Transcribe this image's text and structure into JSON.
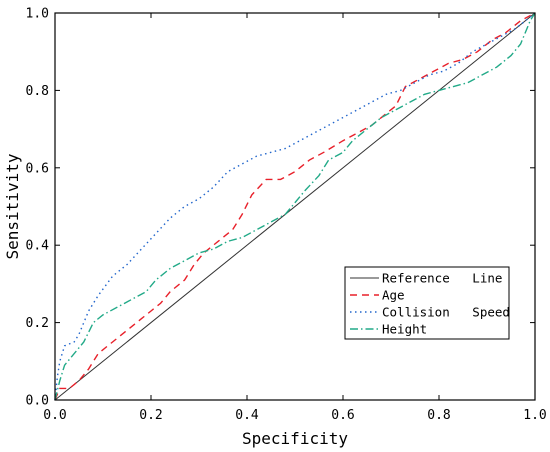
{
  "chart_data": {
    "type": "line",
    "xlabel": "Specificity",
    "ylabel": "Sensitivity",
    "xlim": [
      0.0,
      1.0
    ],
    "ylim": [
      0.0,
      1.0
    ],
    "xticks": [
      "0.0",
      "0.2",
      "0.4",
      "0.6",
      "0.8",
      "1.0"
    ],
    "yticks": [
      "0.0",
      "0.2",
      "0.4",
      "0.6",
      "0.8",
      "1.0"
    ],
    "grid": false,
    "legend_position": "bottom-right",
    "series": [
      {
        "name": "Reference   Line",
        "color": "#333333",
        "dash": "solid",
        "points": [
          [
            0,
            0
          ],
          [
            1,
            1
          ]
        ]
      },
      {
        "name": "Age",
        "color": "#e8202a",
        "dash": "dashed",
        "points": [
          [
            0,
            0
          ],
          [
            0.01,
            0.03
          ],
          [
            0.03,
            0.03
          ],
          [
            0.05,
            0.05
          ],
          [
            0.07,
            0.08
          ],
          [
            0.09,
            0.12
          ],
          [
            0.11,
            0.14
          ],
          [
            0.13,
            0.16
          ],
          [
            0.15,
            0.18
          ],
          [
            0.18,
            0.21
          ],
          [
            0.2,
            0.23
          ],
          [
            0.22,
            0.25
          ],
          [
            0.24,
            0.28
          ],
          [
            0.27,
            0.31
          ],
          [
            0.29,
            0.35
          ],
          [
            0.31,
            0.38
          ],
          [
            0.34,
            0.41
          ],
          [
            0.37,
            0.44
          ],
          [
            0.39,
            0.48
          ],
          [
            0.41,
            0.53
          ],
          [
            0.44,
            0.57
          ],
          [
            0.47,
            0.57
          ],
          [
            0.5,
            0.59
          ],
          [
            0.53,
            0.62
          ],
          [
            0.56,
            0.64
          ],
          [
            0.6,
            0.67
          ],
          [
            0.63,
            0.69
          ],
          [
            0.66,
            0.71
          ],
          [
            0.69,
            0.74
          ],
          [
            0.71,
            0.76
          ],
          [
            0.73,
            0.81
          ],
          [
            0.76,
            0.83
          ],
          [
            0.79,
            0.85
          ],
          [
            0.82,
            0.87
          ],
          [
            0.85,
            0.88
          ],
          [
            0.88,
            0.9
          ],
          [
            0.91,
            0.93
          ],
          [
            0.94,
            0.95
          ],
          [
            0.97,
            0.98
          ],
          [
            1,
            1
          ]
        ]
      },
      {
        "name": "Collision   Speed",
        "color": "#2266cc",
        "dash": "dotted",
        "points": [
          [
            0,
            0
          ],
          [
            0.005,
            0.06
          ],
          [
            0.01,
            0.1
          ],
          [
            0.02,
            0.14
          ],
          [
            0.04,
            0.15
          ],
          [
            0.05,
            0.17
          ],
          [
            0.07,
            0.23
          ],
          [
            0.09,
            0.27
          ],
          [
            0.12,
            0.32
          ],
          [
            0.15,
            0.35
          ],
          [
            0.18,
            0.39
          ],
          [
            0.21,
            0.43
          ],
          [
            0.24,
            0.47
          ],
          [
            0.27,
            0.5
          ],
          [
            0.3,
            0.52
          ],
          [
            0.33,
            0.55
          ],
          [
            0.36,
            0.59
          ],
          [
            0.39,
            0.61
          ],
          [
            0.42,
            0.63
          ],
          [
            0.45,
            0.64
          ],
          [
            0.48,
            0.65
          ],
          [
            0.51,
            0.67
          ],
          [
            0.54,
            0.69
          ],
          [
            0.57,
            0.71
          ],
          [
            0.6,
            0.73
          ],
          [
            0.63,
            0.75
          ],
          [
            0.66,
            0.77
          ],
          [
            0.69,
            0.79
          ],
          [
            0.72,
            0.8
          ],
          [
            0.75,
            0.82
          ],
          [
            0.78,
            0.84
          ],
          [
            0.81,
            0.85
          ],
          [
            0.84,
            0.87
          ],
          [
            0.87,
            0.9
          ],
          [
            0.9,
            0.92
          ],
          [
            0.93,
            0.94
          ],
          [
            0.96,
            0.96
          ],
          [
            0.98,
            0.98
          ],
          [
            1,
            1
          ]
        ]
      },
      {
        "name": "Height",
        "color": "#22aa88",
        "dash": "dashdot",
        "points": [
          [
            0,
            0
          ],
          [
            0.01,
            0.05
          ],
          [
            0.02,
            0.09
          ],
          [
            0.04,
            0.12
          ],
          [
            0.06,
            0.15
          ],
          [
            0.08,
            0.2
          ],
          [
            0.1,
            0.22
          ],
          [
            0.13,
            0.24
          ],
          [
            0.16,
            0.26
          ],
          [
            0.19,
            0.28
          ],
          [
            0.21,
            0.31
          ],
          [
            0.24,
            0.34
          ],
          [
            0.27,
            0.36
          ],
          [
            0.3,
            0.38
          ],
          [
            0.33,
            0.39
          ],
          [
            0.36,
            0.41
          ],
          [
            0.39,
            0.42
          ],
          [
            0.42,
            0.44
          ],
          [
            0.45,
            0.46
          ],
          [
            0.48,
            0.48
          ],
          [
            0.5,
            0.51
          ],
          [
            0.52,
            0.54
          ],
          [
            0.55,
            0.58
          ],
          [
            0.57,
            0.62
          ],
          [
            0.6,
            0.64
          ],
          [
            0.62,
            0.67
          ],
          [
            0.65,
            0.7
          ],
          [
            0.68,
            0.73
          ],
          [
            0.71,
            0.75
          ],
          [
            0.74,
            0.77
          ],
          [
            0.77,
            0.79
          ],
          [
            0.8,
            0.8
          ],
          [
            0.83,
            0.81
          ],
          [
            0.86,
            0.82
          ],
          [
            0.89,
            0.84
          ],
          [
            0.92,
            0.86
          ],
          [
            0.95,
            0.89
          ],
          [
            0.97,
            0.92
          ],
          [
            0.99,
            0.98
          ],
          [
            1,
            1
          ]
        ]
      }
    ]
  }
}
